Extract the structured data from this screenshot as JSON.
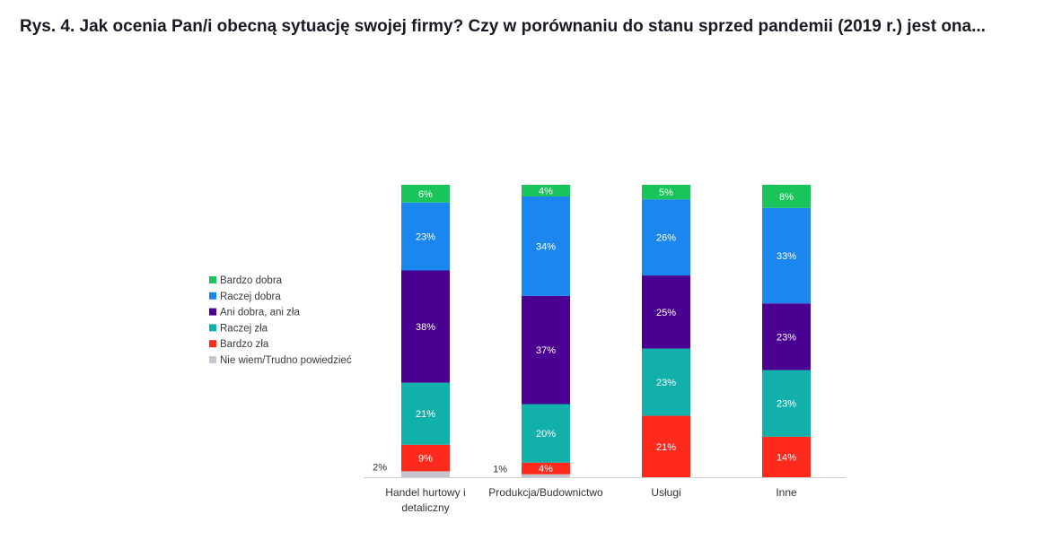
{
  "chart_data": {
    "type": "bar",
    "stacked": true,
    "title": "Rys. 4. Jak ocenia Pan/i obecną sytuację swojej firmy? Czy w porównaniu do stanu sprzed pandemii (2019 r.) jest ona...",
    "categories": [
      [
        "Handel hurtowy i",
        "detaliczny"
      ],
      [
        "Produkcja/Budownictwo"
      ],
      [
        "Usługi"
      ],
      [
        "Inne"
      ]
    ],
    "series": [
      {
        "name": "Nie wiem/Trudno powiedzieć",
        "color": "#c5c6d0",
        "values": [
          2,
          1,
          0,
          0
        ],
        "labels": [
          "2%",
          "1%",
          "",
          ""
        ],
        "label_position": "outside"
      },
      {
        "name": "Bardzo zła",
        "color": "#ff2a1c",
        "values": [
          9,
          4,
          21,
          14
        ],
        "labels": [
          "9%",
          "4%",
          "21%",
          "14%"
        ]
      },
      {
        "name": "Raczej zła",
        "color": "#12b0aa",
        "values": [
          21,
          20,
          23,
          23
        ],
        "labels": [
          "21%",
          "20%",
          "23%",
          "23%"
        ]
      },
      {
        "name": "Ani dobra, ani zła",
        "color": "#4a0090",
        "values": [
          38,
          37,
          25,
          23
        ],
        "labels": [
          "38%",
          "37%",
          "25%",
          "23%"
        ]
      },
      {
        "name": "Raczej dobra",
        "color": "#1a86ee",
        "values": [
          23,
          34,
          26,
          33
        ],
        "labels": [
          "23%",
          "34%",
          "26%",
          "33%"
        ]
      },
      {
        "name": "Bardzo dobra",
        "color": "#19c45a",
        "values": [
          6,
          4,
          5,
          8
        ],
        "labels": [
          "6%",
          "4%",
          "5%",
          "8%"
        ]
      }
    ],
    "legend": {
      "placement": "left",
      "order": [
        "Bardzo dobra",
        "Raczej dobra",
        "Ani dobra, ani zła",
        "Raczej zła",
        "Bardzo zła",
        "Nie wiem/Trudno powiedzieć"
      ]
    },
    "ylim": [
      0,
      100
    ],
    "grid": false,
    "xlabel": "",
    "ylabel": ""
  }
}
